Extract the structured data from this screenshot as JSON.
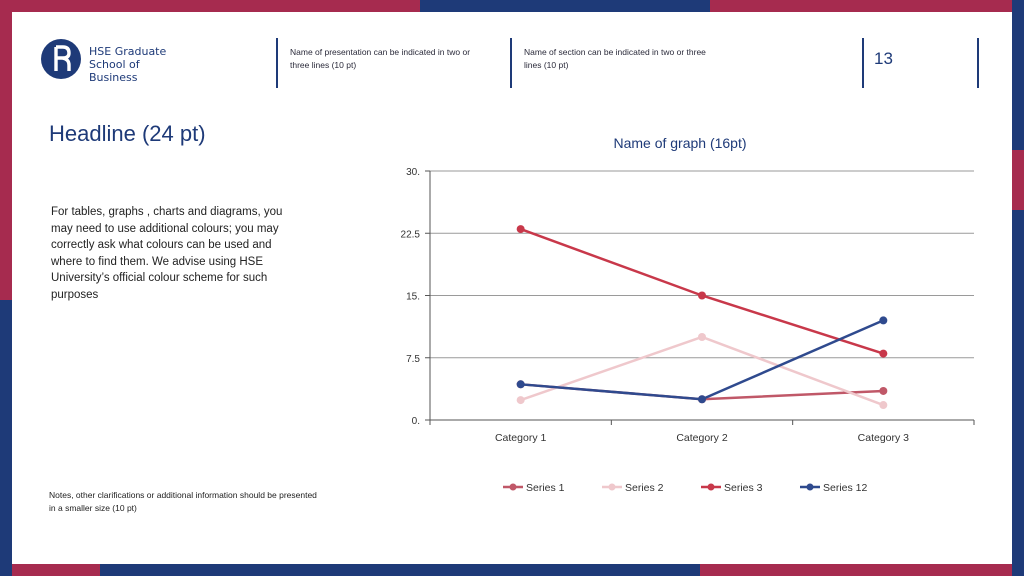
{
  "colors": {
    "navy": "#1e3a78",
    "crimson": "#a62b4f",
    "series1": "#c05868",
    "series2": "#efc8cc",
    "series3": "#c8384a",
    "series12": "#2f4a8e",
    "grid": "#9a9a9a"
  },
  "logo": {
    "line1": "HSE Graduate",
    "line2": "School of Business",
    "icon": "hse-logo-icon"
  },
  "header": {
    "presentation_name": "Name of presentation can be indicated in two or three lines (10 pt)",
    "section_name": "Name of section can be indicated in two or three lines (10 pt)",
    "page_number": "13"
  },
  "headline": "Headline (24 pt)",
  "body_text": "For tables, graphs , charts and diagrams, you may need to use additional colours; you may correctly ask what colours can be used and where to find them. We advise using HSE University’s official colour scheme for such purposes",
  "notes": "Notes, other clarifications or additional information should be presented in a smaller size (10 pt)",
  "chart_data": {
    "type": "line",
    "title": "Name of graph (16pt)",
    "categories": [
      "Category 1",
      "Category 2",
      "Category 3"
    ],
    "ylim": [
      0,
      30
    ],
    "yticks": [
      0,
      7.5,
      15,
      22.5,
      30
    ],
    "ytick_labels": [
      "0.",
      "7.5",
      "15.",
      "22.5",
      "30."
    ],
    "grid": true,
    "legend_position": "bottom",
    "series": [
      {
        "name": "Series 1",
        "values": [
          4.3,
          2.5,
          3.5
        ],
        "color": "#c05868"
      },
      {
        "name": "Series 2",
        "values": [
          2.4,
          10,
          1.8
        ],
        "color": "#efc8cc"
      },
      {
        "name": "Series 3",
        "values": [
          23,
          15,
          8
        ],
        "color": "#c8384a"
      },
      {
        "name": "Series 12",
        "values": [
          4.3,
          2.5,
          12
        ],
        "color": "#2f4a8e"
      }
    ]
  }
}
